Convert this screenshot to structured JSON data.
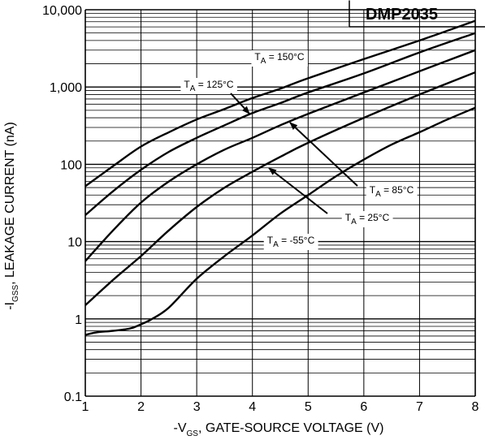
{
  "chart_data": {
    "type": "line",
    "part_number": "DMP2035",
    "x_axis": {
      "prefix": "-V",
      "subscript": "GS",
      "suffix": ", GATE-SOURCE VOLTAGE (V)",
      "range": [
        1,
        8
      ],
      "ticks": [
        "1",
        "2",
        "3",
        "4",
        "5",
        "6",
        "7",
        "8"
      ]
    },
    "y_axis": {
      "prefix": "-I",
      "subscript": "GSS",
      "suffix": ", LEAKAGE CURRENT (nA)",
      "scale": "log",
      "range": [
        0.1,
        10000
      ],
      "ticks": [
        "0.1",
        "1",
        "10",
        "100",
        "1,000",
        "10,000"
      ]
    },
    "grid": true,
    "series": [
      {
        "name_prefix": "T",
        "name_sub": "A",
        "name_suffix": " = -55°C",
        "x": [
          1,
          1.2,
          1.5,
          1.8,
          2,
          2.2,
          2.5,
          3,
          3.5,
          4,
          4.5,
          5,
          5.5,
          6,
          6.5,
          7,
          7.5,
          8
        ],
        "y": [
          0.62,
          0.67,
          0.7,
          0.75,
          0.85,
          1.0,
          1.4,
          3.3,
          6.5,
          12,
          23,
          40,
          70,
          115,
          180,
          260,
          380,
          540
        ]
      },
      {
        "name_prefix": "T",
        "name_sub": "A",
        "name_suffix": " = 25°C",
        "x": [
          1,
          1.5,
          2,
          2.5,
          3,
          3.5,
          4,
          4.5,
          5,
          6,
          7,
          8
        ],
        "y": [
          1.5,
          3.2,
          6.5,
          14,
          28,
          50,
          80,
          125,
          190,
          400,
          800,
          1550
        ]
      },
      {
        "name_prefix": "T",
        "name_sub": "A",
        "name_suffix": " = 85°C",
        "x": [
          1,
          1.5,
          2,
          2.5,
          3,
          3.5,
          4,
          4.5,
          5,
          6,
          7,
          8
        ],
        "y": [
          5.6,
          14,
          32,
          60,
          100,
          155,
          220,
          320,
          450,
          850,
          1600,
          3000
        ]
      },
      {
        "name_prefix": "T",
        "name_sub": "A",
        "name_suffix": " = 125°C",
        "x": [
          1,
          1.5,
          2,
          2.5,
          3,
          3.5,
          4,
          4.5,
          5,
          6,
          7,
          8
        ],
        "y": [
          22,
          45,
          85,
          145,
          220,
          320,
          460,
          620,
          850,
          1500,
          2800,
          5000
        ]
      },
      {
        "name_prefix": "T",
        "name_sub": "A",
        "name_suffix": " = 150°C",
        "x": [
          1,
          1.5,
          2,
          2.5,
          3,
          3.5,
          4,
          4.5,
          5,
          6,
          7,
          8
        ],
        "y": [
          52,
          95,
          170,
          260,
          380,
          520,
          720,
          950,
          1300,
          2300,
          4000,
          7200
        ]
      }
    ]
  }
}
